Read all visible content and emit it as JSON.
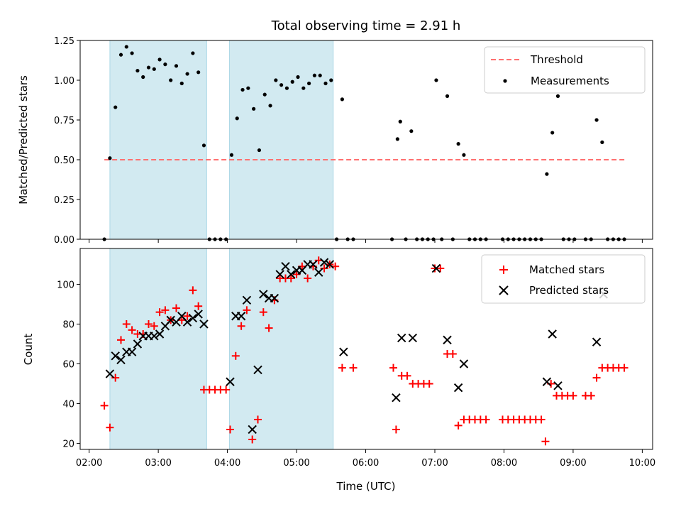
{
  "chart_data": {
    "title": "Total observing time = 2.91 h",
    "xlabel": "Time (UTC)",
    "x_tick_labels": [
      "02:00",
      "03:00",
      "04:00",
      "05:00",
      "06:00",
      "07:00",
      "08:00",
      "09:00",
      "10:00"
    ],
    "x_ticks_hours": [
      2,
      3,
      4,
      5,
      6,
      7,
      8,
      9,
      10
    ],
    "xlim_hours": [
      1.87,
      10.15
    ],
    "shaded_intervals_hours": [
      [
        2.3,
        3.7
      ],
      [
        4.03,
        5.53
      ]
    ],
    "colors": {
      "shade": "#add8e6",
      "threshold": "#ff7070",
      "measurements": "#000000",
      "matched": "#ff0000",
      "predicted": "#000000"
    },
    "panels": [
      {
        "type": "scatter",
        "ylabel": "Matched/Predicted stars",
        "ylim": [
          0,
          1.25
        ],
        "y_ticks": [
          0,
          0.25,
          0.5,
          0.75,
          1.0,
          1.25
        ],
        "y_tick_labels": [
          "0.00",
          "0.25",
          "0.50",
          "0.75",
          "1.00",
          "1.25"
        ],
        "legend_position": "top-right",
        "threshold": {
          "name": "Threshold",
          "y": 0.5,
          "x_range_hours": [
            2.22,
            9.78
          ]
        },
        "series": [
          {
            "name": "Measurements",
            "marker": "dot",
            "points": [
              [
                2.22,
                0.0
              ],
              [
                2.3,
                0.51
              ],
              [
                2.38,
                0.83
              ],
              [
                2.46,
                1.16
              ],
              [
                2.54,
                1.21
              ],
              [
                2.62,
                1.17
              ],
              [
                2.7,
                1.06
              ],
              [
                2.78,
                1.02
              ],
              [
                2.86,
                1.08
              ],
              [
                2.94,
                1.07
              ],
              [
                3.02,
                1.13
              ],
              [
                3.1,
                1.1
              ],
              [
                3.18,
                1.0
              ],
              [
                3.26,
                1.09
              ],
              [
                3.34,
                0.98
              ],
              [
                3.42,
                1.04
              ],
              [
                3.5,
                1.17
              ],
              [
                3.58,
                1.05
              ],
              [
                3.66,
                0.59
              ],
              [
                3.74,
                0.0
              ],
              [
                3.82,
                0.0
              ],
              [
                3.9,
                0.0
              ],
              [
                3.98,
                0.0
              ],
              [
                4.06,
                0.53
              ],
              [
                4.14,
                0.76
              ],
              [
                4.22,
                0.94
              ],
              [
                4.3,
                0.95
              ],
              [
                4.38,
                0.82
              ],
              [
                4.46,
                0.56
              ],
              [
                4.54,
                0.91
              ],
              [
                4.62,
                0.84
              ],
              [
                4.7,
                1.0
              ],
              [
                4.78,
                0.97
              ],
              [
                4.86,
                0.95
              ],
              [
                4.94,
                0.99
              ],
              [
                5.02,
                1.02
              ],
              [
                5.1,
                0.95
              ],
              [
                5.18,
                0.98
              ],
              [
                5.26,
                1.03
              ],
              [
                5.34,
                1.03
              ],
              [
                5.42,
                0.98
              ],
              [
                5.5,
                1.0
              ],
              [
                5.58,
                0.0
              ],
              [
                5.66,
                0.88
              ],
              [
                5.74,
                0.0
              ],
              [
                5.82,
                0.0
              ],
              [
                6.38,
                0.0
              ],
              [
                6.46,
                0.63
              ],
              [
                6.5,
                0.74
              ],
              [
                6.58,
                0.0
              ],
              [
                6.66,
                0.68
              ],
              [
                6.74,
                0.0
              ],
              [
                6.82,
                0.0
              ],
              [
                6.9,
                0.0
              ],
              [
                6.98,
                0.0
              ],
              [
                7.02,
                1.0
              ],
              [
                7.1,
                0.0
              ],
              [
                7.18,
                0.9
              ],
              [
                7.26,
                0.0
              ],
              [
                7.34,
                0.6
              ],
              [
                7.42,
                0.53
              ],
              [
                7.5,
                0.0
              ],
              [
                7.58,
                0.0
              ],
              [
                7.66,
                0.0
              ],
              [
                7.74,
                0.0
              ],
              [
                7.98,
                0.0
              ],
              [
                8.06,
                0.0
              ],
              [
                8.14,
                0.0
              ],
              [
                8.22,
                0.0
              ],
              [
                8.3,
                0.0
              ],
              [
                8.38,
                0.0
              ],
              [
                8.46,
                0.0
              ],
              [
                8.54,
                0.0
              ],
              [
                8.62,
                0.41
              ],
              [
                8.7,
                0.67
              ],
              [
                8.78,
                0.9
              ],
              [
                8.86,
                0.0
              ],
              [
                8.94,
                0.0
              ],
              [
                9.02,
                0.0
              ],
              [
                9.18,
                0.0
              ],
              [
                9.26,
                0.0
              ],
              [
                9.34,
                0.75
              ],
              [
                9.42,
                0.61
              ],
              [
                9.5,
                0.0
              ],
              [
                9.58,
                0.0
              ],
              [
                9.66,
                0.0
              ],
              [
                9.74,
                0.0
              ]
            ]
          }
        ]
      },
      {
        "type": "scatter",
        "ylabel": "Count",
        "ylim": [
          17,
          118
        ],
        "y_ticks": [
          20,
          40,
          60,
          80,
          100
        ],
        "y_tick_labels": [
          "20",
          "40",
          "60",
          "80",
          "100"
        ],
        "legend_position": "top-right",
        "series": [
          {
            "name": "Matched stars",
            "marker": "plus",
            "points": [
              [
                2.22,
                39
              ],
              [
                2.3,
                28
              ],
              [
                2.38,
                53
              ],
              [
                2.46,
                72
              ],
              [
                2.54,
                80
              ],
              [
                2.62,
                77
              ],
              [
                2.7,
                75
              ],
              [
                2.78,
                75
              ],
              [
                2.86,
                80
              ],
              [
                2.94,
                79
              ],
              [
                3.02,
                86
              ],
              [
                3.1,
                87
              ],
              [
                3.18,
                82
              ],
              [
                3.26,
                88
              ],
              [
                3.34,
                82
              ],
              [
                3.42,
                84
              ],
              [
                3.5,
                97
              ],
              [
                3.58,
                89
              ],
              [
                3.66,
                47
              ],
              [
                3.74,
                47
              ],
              [
                3.82,
                47
              ],
              [
                3.9,
                47
              ],
              [
                3.98,
                47
              ],
              [
                4.04,
                27
              ],
              [
                4.12,
                64
              ],
              [
                4.2,
                79
              ],
              [
                4.28,
                87
              ],
              [
                4.36,
                22
              ],
              [
                4.44,
                32
              ],
              [
                4.52,
                86
              ],
              [
                4.6,
                78
              ],
              [
                4.68,
                92
              ],
              [
                4.76,
                103
              ],
              [
                4.84,
                103
              ],
              [
                4.92,
                103
              ],
              [
                5.0,
                105
              ],
              [
                5.08,
                109
              ],
              [
                5.16,
                103
              ],
              [
                5.24,
                109
              ],
              [
                5.32,
                112
              ],
              [
                5.4,
                108
              ],
              [
                5.48,
                110
              ],
              [
                5.56,
                109
              ],
              [
                5.66,
                58
              ],
              [
                5.82,
                58
              ],
              [
                6.4,
                58
              ],
              [
                6.44,
                27
              ],
              [
                6.52,
                54
              ],
              [
                6.6,
                54
              ],
              [
                6.68,
                50
              ],
              [
                6.76,
                50
              ],
              [
                6.84,
                50
              ],
              [
                6.92,
                50
              ],
              [
                7.0,
                108
              ],
              [
                7.08,
                108
              ],
              [
                7.18,
                65
              ],
              [
                7.26,
                65
              ],
              [
                7.34,
                29
              ],
              [
                7.42,
                32
              ],
              [
                7.5,
                32
              ],
              [
                7.58,
                32
              ],
              [
                7.66,
                32
              ],
              [
                7.74,
                32
              ],
              [
                7.98,
                32
              ],
              [
                8.06,
                32
              ],
              [
                8.14,
                32
              ],
              [
                8.22,
                32
              ],
              [
                8.3,
                32
              ],
              [
                8.38,
                32
              ],
              [
                8.46,
                32
              ],
              [
                8.54,
                32
              ],
              [
                8.6,
                21
              ],
              [
                8.68,
                50
              ],
              [
                8.76,
                44
              ],
              [
                8.84,
                44
              ],
              [
                8.92,
                44
              ],
              [
                9.0,
                44
              ],
              [
                9.18,
                44
              ],
              [
                9.26,
                44
              ],
              [
                9.34,
                53
              ],
              [
                9.42,
                58
              ],
              [
                9.5,
                58
              ],
              [
                9.58,
                58
              ],
              [
                9.66,
                58
              ],
              [
                9.74,
                58
              ]
            ]
          },
          {
            "name": "Predicted stars",
            "marker": "x",
            "points": [
              [
                2.3,
                55
              ],
              [
                2.38,
                64
              ],
              [
                2.46,
                62
              ],
              [
                2.54,
                66
              ],
              [
                2.62,
                66
              ],
              [
                2.7,
                70
              ],
              [
                2.78,
                74
              ],
              [
                2.86,
                74
              ],
              [
                2.94,
                74
              ],
              [
                3.02,
                75
              ],
              [
                3.1,
                79
              ],
              [
                3.18,
                82
              ],
              [
                3.26,
                81
              ],
              [
                3.34,
                84
              ],
              [
                3.42,
                81
              ],
              [
                3.5,
                83
              ],
              [
                3.58,
                85
              ],
              [
                3.66,
                80
              ],
              [
                4.04,
                51
              ],
              [
                4.12,
                84
              ],
              [
                4.2,
                84
              ],
              [
                4.28,
                92
              ],
              [
                4.36,
                27
              ],
              [
                4.44,
                57
              ],
              [
                4.52,
                95
              ],
              [
                4.6,
                93
              ],
              [
                4.68,
                93
              ],
              [
                4.76,
                105
              ],
              [
                4.84,
                109
              ],
              [
                4.92,
                105
              ],
              [
                5.0,
                107
              ],
              [
                5.08,
                107
              ],
              [
                5.16,
                110
              ],
              [
                5.24,
                110
              ],
              [
                5.32,
                106
              ],
              [
                5.4,
                111
              ],
              [
                5.48,
                110
              ],
              [
                5.68,
                66
              ],
              [
                6.44,
                43
              ],
              [
                6.52,
                73
              ],
              [
                6.68,
                73
              ],
              [
                7.02,
                108
              ],
              [
                7.18,
                72
              ],
              [
                7.34,
                48
              ],
              [
                7.42,
                60
              ],
              [
                8.62,
                51
              ],
              [
                8.7,
                75
              ],
              [
                8.78,
                49
              ],
              [
                9.34,
                71
              ],
              [
                9.44,
                95
              ]
            ]
          }
        ]
      }
    ]
  }
}
